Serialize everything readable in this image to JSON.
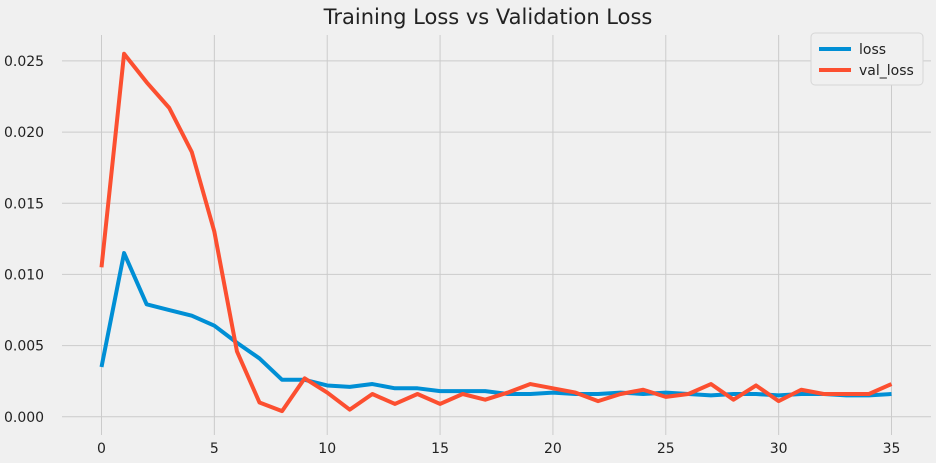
{
  "chart_data": {
    "type": "line",
    "title": "Training Loss vs Validation Loss",
    "xlabel": "",
    "ylabel": "",
    "xlim": [
      -1.75,
      36.75
    ],
    "ylim": [
      -0.00128,
      0.02682
    ],
    "x_ticks": [
      0,
      5,
      10,
      15,
      20,
      25,
      30,
      35
    ],
    "y_ticks": [
      0.0,
      0.005,
      0.01,
      0.015,
      0.02,
      0.025
    ],
    "y_tick_labels": [
      "0.000",
      "0.005",
      "0.010",
      "0.015",
      "0.020",
      "0.025"
    ],
    "grid": true,
    "legend_position": "top-right",
    "x": [
      0,
      1,
      2,
      3,
      4,
      5,
      6,
      7,
      8,
      9,
      10,
      11,
      12,
      13,
      14,
      15,
      16,
      17,
      18,
      19,
      20,
      21,
      22,
      23,
      24,
      25,
      26,
      27,
      28,
      29,
      30,
      31,
      32,
      33,
      34,
      35
    ],
    "series": [
      {
        "name": "loss",
        "color": "#008fd5",
        "values": [
          0.0035,
          0.0115,
          0.0079,
          0.0075,
          0.0071,
          0.0064,
          0.0052,
          0.0041,
          0.0026,
          0.0026,
          0.0022,
          0.0021,
          0.0023,
          0.002,
          0.002,
          0.0018,
          0.0018,
          0.0018,
          0.0016,
          0.0016,
          0.0017,
          0.0016,
          0.0016,
          0.0017,
          0.0016,
          0.0017,
          0.0016,
          0.0015,
          0.0016,
          0.0016,
          0.0015,
          0.0016,
          0.0016,
          0.0015,
          0.0015,
          0.0016
        ]
      },
      {
        "name": "val_loss",
        "color": "#fc4f30",
        "values": [
          0.0105,
          0.0255,
          0.0235,
          0.0217,
          0.0186,
          0.013,
          0.0046,
          0.001,
          0.0004,
          0.0027,
          0.0017,
          0.0005,
          0.0016,
          0.0009,
          0.0016,
          0.0009,
          0.0016,
          0.0012,
          0.0017,
          0.0023,
          0.002,
          0.0017,
          0.0011,
          0.0016,
          0.0019,
          0.0014,
          0.0016,
          0.0023,
          0.0012,
          0.0022,
          0.0011,
          0.0019,
          0.0016,
          0.0016,
          0.0016,
          0.0023
        ]
      }
    ]
  }
}
